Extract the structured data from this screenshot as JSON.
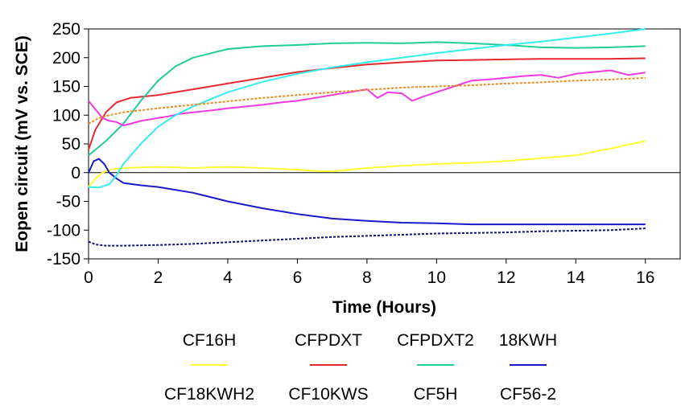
{
  "chart_data": {
    "type": "line",
    "xlabel": "Time (Hours)",
    "ylabel": "Eopen circuit (mV vs. SCE)",
    "xlim": [
      0,
      17
    ],
    "ylim": [
      -150,
      250
    ],
    "xticks": [
      0,
      2,
      4,
      6,
      8,
      10,
      12,
      14,
      16
    ],
    "yticks": [
      -150,
      -100,
      -50,
      0,
      50,
      100,
      150,
      200,
      250
    ],
    "grid": false,
    "legend_placement": "bottom",
    "series": [
      {
        "name": "CF16H",
        "color": "#ffff33",
        "style": "solid",
        "x": [
          0,
          0.2,
          0.4,
          0.6,
          1,
          2,
          3,
          4,
          5,
          6,
          6.5,
          7,
          7.5,
          8,
          9,
          10,
          11,
          12,
          13,
          14,
          15,
          16
        ],
        "y": [
          -25,
          -10,
          0,
          5,
          8,
          10,
          8,
          10,
          8,
          5,
          3,
          2,
          5,
          8,
          12,
          15,
          17,
          20,
          25,
          30,
          42,
          55
        ]
      },
      {
        "name": "CFPDXT",
        "color": "#e8272e",
        "style": "solid",
        "x": [
          0,
          0.2,
          0.5,
          0.8,
          1.2,
          2,
          3,
          4,
          5,
          6,
          7,
          8,
          9,
          10,
          11,
          12,
          13,
          14,
          15,
          16
        ],
        "y": [
          40,
          75,
          105,
          122,
          130,
          135,
          145,
          155,
          165,
          175,
          182,
          188,
          192,
          195,
          196,
          197,
          198,
          198,
          198,
          199
        ]
      },
      {
        "name": "CFPDXT2",
        "color": "#22cc99",
        "style": "solid",
        "x": [
          0,
          0.5,
          1,
          1.5,
          2,
          2.5,
          3,
          4,
          5,
          6,
          7,
          8,
          9,
          10,
          11,
          12,
          13,
          14,
          15,
          16
        ],
        "y": [
          30,
          55,
          85,
          125,
          160,
          185,
          200,
          215,
          220,
          222,
          225,
          226,
          225,
          227,
          225,
          222,
          218,
          217,
          218,
          220
        ]
      },
      {
        "name": "18KWH",
        "color": "#1a1acc",
        "style": "solid",
        "x": [
          0,
          0.15,
          0.3,
          0.45,
          0.6,
          0.8,
          1,
          1.5,
          2,
          3,
          4,
          5,
          6,
          7,
          8,
          9,
          10,
          11,
          12,
          13,
          14,
          15,
          16
        ],
        "y": [
          0,
          20,
          24,
          15,
          0,
          -10,
          -18,
          -22,
          -25,
          -35,
          -50,
          -62,
          -72,
          -80,
          -84,
          -87,
          -88,
          -90,
          -90,
          -90,
          -90,
          -90,
          -90
        ]
      },
      {
        "name": "CF18KWH2",
        "color": "#10107a",
        "style": "dotted",
        "x": [
          0,
          0.2,
          0.5,
          1,
          2,
          3,
          4,
          5,
          6,
          7,
          8,
          9,
          10,
          11,
          12,
          13,
          14,
          15,
          16
        ],
        "y": [
          -120,
          -125,
          -127,
          -127,
          -126,
          -124,
          -121,
          -118,
          -115,
          -112,
          -110,
          -108,
          -106,
          -105,
          -104,
          -102,
          -101,
          -100,
          -97
        ]
      },
      {
        "name": "CF10KWS",
        "color": "#ee3ae0",
        "style": "solid",
        "x": [
          0,
          0.2,
          0.4,
          0.6,
          0.8,
          1,
          1.2,
          1.5,
          2,
          2.3,
          2.6,
          3,
          3.5,
          4,
          4.5,
          5,
          5.5,
          6,
          6.5,
          7,
          7.5,
          8,
          8.3,
          8.6,
          9,
          9.3,
          9.6,
          10,
          10.5,
          11,
          11.5,
          12,
          12.5,
          13,
          13.5,
          14,
          14.5,
          15,
          15.5,
          16
        ],
        "y": [
          125,
          110,
          95,
          90,
          88,
          82,
          85,
          90,
          95,
          98,
          102,
          105,
          108,
          112,
          115,
          118,
          122,
          125,
          130,
          135,
          140,
          145,
          130,
          140,
          138,
          125,
          132,
          140,
          150,
          160,
          162,
          165,
          168,
          170,
          165,
          172,
          175,
          178,
          170,
          174
        ]
      },
      {
        "name": "CF5H",
        "color": "#33eeee",
        "style": "solid",
        "x": [
          0,
          0.3,
          0.6,
          0.8,
          1,
          1.5,
          2,
          2.5,
          3,
          4,
          5,
          6,
          7,
          8,
          9,
          10,
          11,
          12,
          13,
          14,
          15,
          16
        ],
        "y": [
          -25,
          -26,
          -20,
          -5,
          15,
          50,
          80,
          100,
          115,
          140,
          158,
          172,
          183,
          192,
          200,
          208,
          215,
          222,
          228,
          235,
          242,
          250
        ]
      },
      {
        "name": "CF56-2",
        "color": "#f08a1e",
        "style": "dotted",
        "x": [
          0,
          0.3,
          0.6,
          1,
          2,
          3,
          4,
          5,
          6,
          7,
          8,
          9,
          10,
          11,
          12,
          13,
          14,
          15,
          16
        ],
        "y": [
          85,
          95,
          100,
          105,
          112,
          118,
          124,
          130,
          135,
          140,
          144,
          148,
          150,
          152,
          155,
          157,
          160,
          162,
          165
        ]
      }
    ]
  }
}
